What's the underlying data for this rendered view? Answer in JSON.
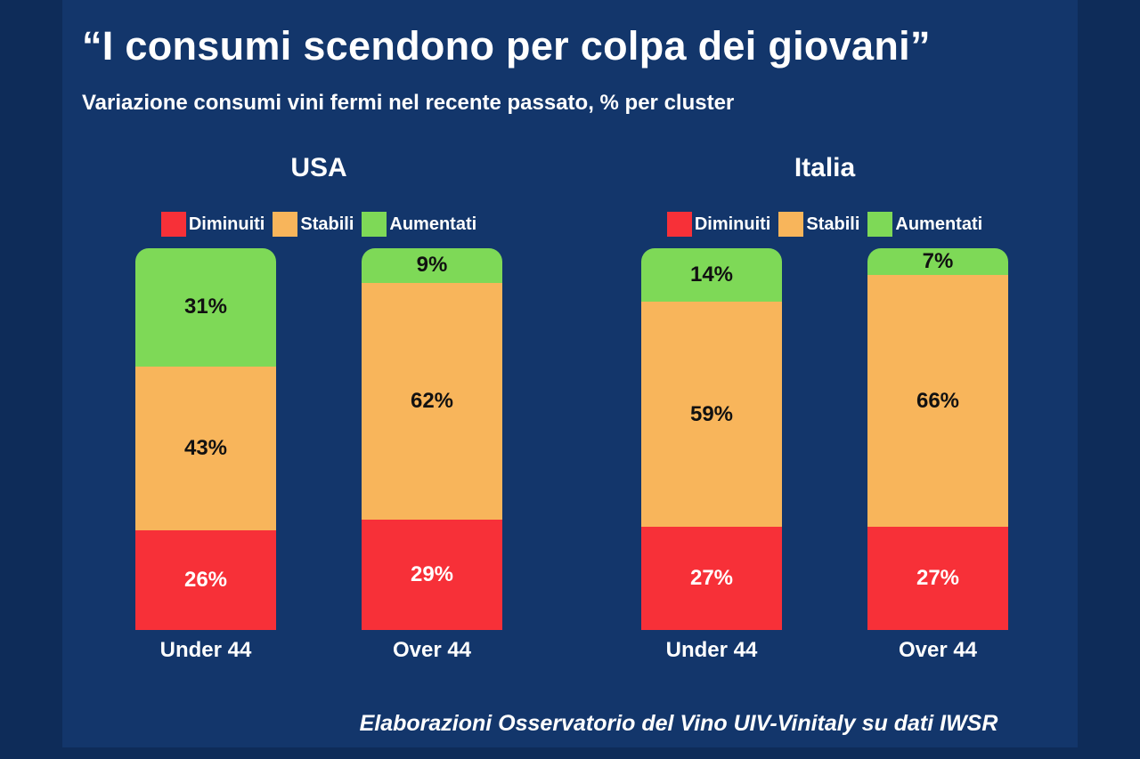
{
  "slide": {
    "title": "“I consumi scendono per colpa dei giovani”",
    "subtitle": "Variazione consumi vini fermi nel recente passato, % per cluster",
    "footer": "Elaborazioni Osservatorio del Vino UIV-Vinitaly su dati IWSR"
  },
  "colors": {
    "background": "#13366B",
    "frame": "#0E2C59",
    "diminuiti": "#F73038",
    "stabili": "#F8B55B",
    "aumentati": "#7ED957",
    "value_label_dark": "#111111",
    "value_label_light": "#FFFFFF"
  },
  "chart_data": {
    "type": "bar",
    "subtype": "stacked-100-percent",
    "value_suffix": "%",
    "ylim": [
      0,
      100
    ],
    "grid": false,
    "legend_position": "top-center",
    "legend": [
      {
        "label": "Diminuiti",
        "color": "#F73038",
        "value_text_color": "#FFFFFF"
      },
      {
        "label": "Stabili",
        "color": "#F8B55B",
        "value_text_color": "#111111"
      },
      {
        "label": "Aumentati",
        "color": "#7ED957",
        "value_text_color": "#111111"
      }
    ],
    "groups": [
      {
        "title": "USA",
        "bars": [
          {
            "category": "Under 44",
            "segments": [
              {
                "name": "Aumentati",
                "value": 31
              },
              {
                "name": "Stabili",
                "value": 43
              },
              {
                "name": "Diminuiti",
                "value": 26
              }
            ]
          },
          {
            "category": "Over 44",
            "segments": [
              {
                "name": "Aumentati",
                "value": 9
              },
              {
                "name": "Stabili",
                "value": 62
              },
              {
                "name": "Diminuiti",
                "value": 29
              }
            ]
          }
        ]
      },
      {
        "title": "Italia",
        "bars": [
          {
            "category": "Under 44",
            "segments": [
              {
                "name": "Aumentati",
                "value": 14
              },
              {
                "name": "Stabili",
                "value": 59
              },
              {
                "name": "Diminuiti",
                "value": 27
              }
            ]
          },
          {
            "category": "Over 44",
            "segments": [
              {
                "name": "Aumentati",
                "value": 7
              },
              {
                "name": "Stabili",
                "value": 66
              },
              {
                "name": "Diminuiti",
                "value": 27
              }
            ]
          }
        ]
      }
    ]
  }
}
